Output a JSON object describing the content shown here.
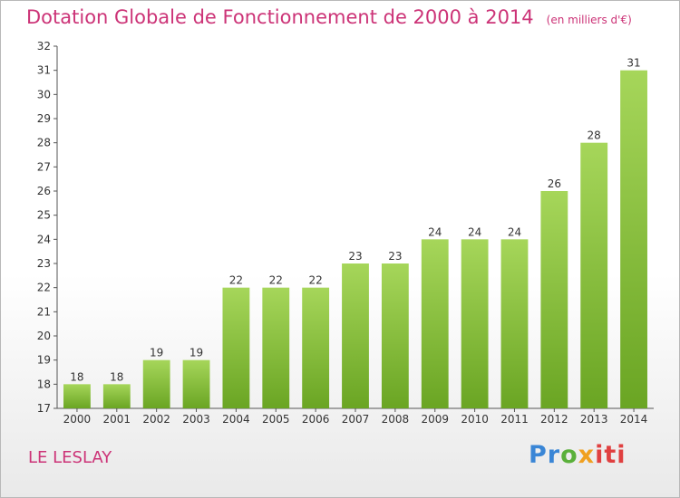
{
  "chart_data": {
    "type": "bar",
    "title": "Dotation Globale de Fonctionnement de 2000 à 2014",
    "subtitle": "(en milliers d'€)",
    "categories": [
      "2000",
      "2001",
      "2002",
      "2003",
      "2004",
      "2005",
      "2006",
      "2007",
      "2008",
      "2009",
      "2010",
      "2011",
      "2012",
      "2013",
      "2014"
    ],
    "values": [
      18,
      18,
      19,
      19,
      22,
      22,
      22,
      23,
      23,
      24,
      24,
      24,
      26,
      28,
      31
    ],
    "ylim": [
      17,
      32
    ],
    "yticks": [
      17,
      18,
      19,
      20,
      21,
      22,
      23,
      24,
      25,
      26,
      27,
      28,
      29,
      30,
      31,
      32
    ],
    "xlabel": "",
    "ylabel": "",
    "grid": false,
    "bar_color": "#7ab82e",
    "bar_color_light": "#a6d65a"
  },
  "commune": "LE LESLAY",
  "logo": {
    "part1": "Pr",
    "part2": "o",
    "part3": "x",
    "part4": "iti"
  },
  "accent_color": "#cc3377"
}
